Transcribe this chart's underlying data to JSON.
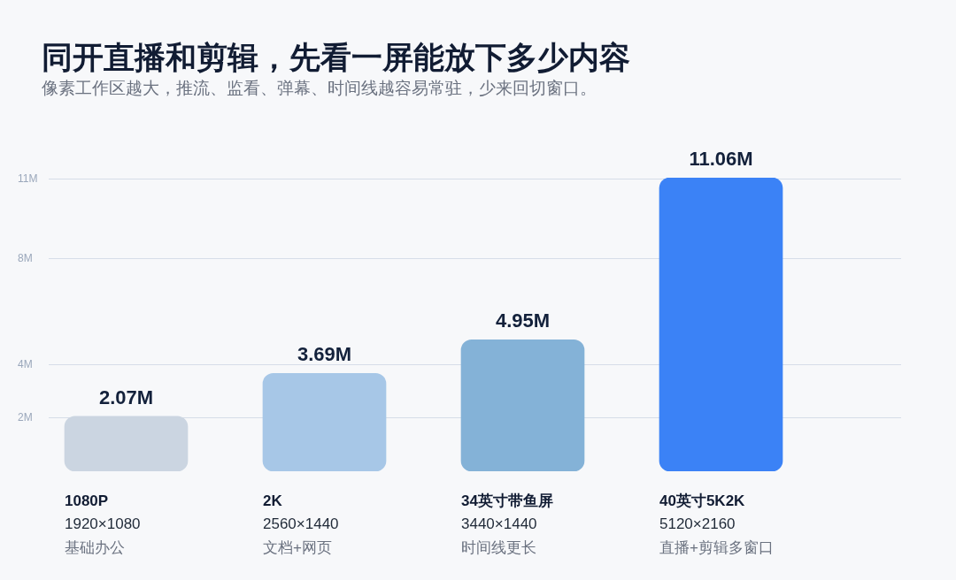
{
  "chart_data": {
    "type": "bar",
    "title": "同开直播和剪辑，先看一屏能放下多少内容",
    "subtitle": "像素工作区越大，推流、监看、弹幕、时间线越容易常驻，少来回切窗口。",
    "categories": [
      "1080P\n1920×1080\n基础办公",
      "2K\n2560×1440\n文档+网页",
      "34英寸带鱼屏\n3440×1440\n时间线更长",
      "40英寸5K2K\n5120×2160\n直播+剪辑多窗口"
    ],
    "values": [
      2.07,
      3.69,
      4.95,
      11.06
    ],
    "colors": [
      "#cbd5e1",
      "#a7c7e7",
      "#84b2d7",
      "#3b82f6"
    ],
    "value_labels": [
      "2.07M",
      "3.69M",
      "4.95M",
      "11.06M"
    ],
    "ylim": [
      0,
      11.06
    ],
    "yticks": [
      {
        "value": 2,
        "label": "2M"
      },
      {
        "value": 4,
        "label": "4M"
      },
      {
        "value": 8,
        "label": "8M"
      },
      {
        "value": 11,
        "label": "11M"
      }
    ],
    "grid": "y"
  }
}
